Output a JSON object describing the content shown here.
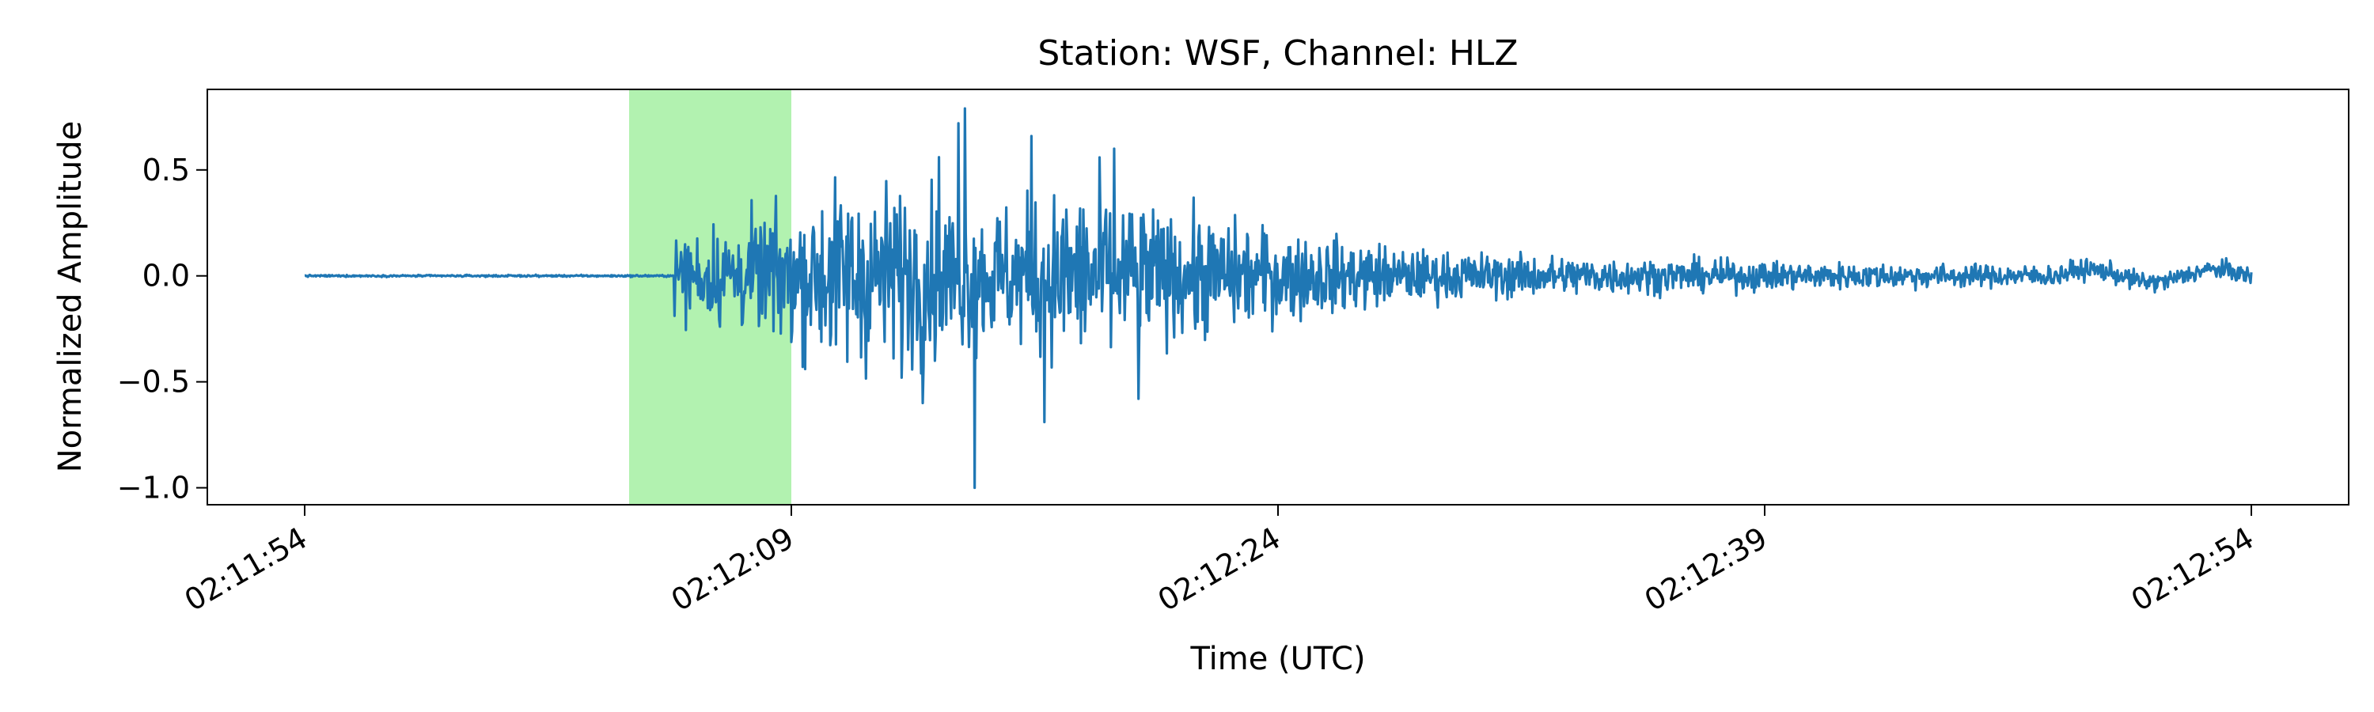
{
  "chart_data": {
    "type": "line",
    "title": "Station: WSF, Channel: HLZ",
    "xlabel": "Time (UTC)",
    "ylabel": "Normalized Amplitude",
    "xlim": [
      "02:11:51",
      "02:12:57"
    ],
    "ylim": [
      -1.08,
      0.88
    ],
    "x_ticks": [
      "02:11:54",
      "02:12:09",
      "02:12:24",
      "02:12:39",
      "02:12:54"
    ],
    "y_ticks": [
      "0.5",
      "0.0",
      "−0.5",
      "−1.0"
    ],
    "y_tick_values": [
      0.5,
      0.0,
      -0.5,
      -1.0
    ],
    "grid": false,
    "highlight": {
      "start": "02:12:04",
      "end": "02:12:09",
      "color": "#b2f2b0"
    },
    "series": [
      {
        "color": "#1f77b4",
        "sample_rate_hz": 10,
        "start": "02:11:54",
        "end": "02:12:54",
        "peak_max": 0.79,
        "peak_min": -1.0
      }
    ]
  }
}
